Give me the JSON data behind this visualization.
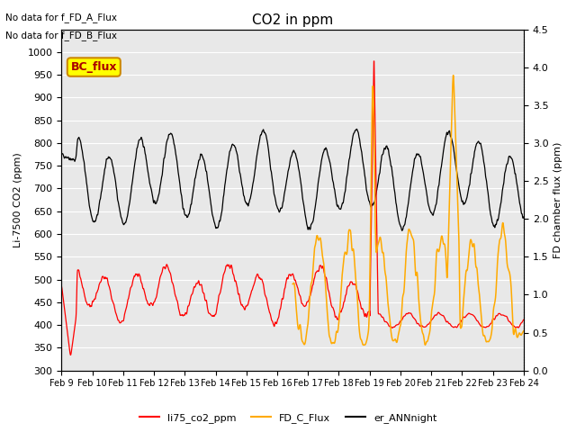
{
  "title": "CO2 in ppm",
  "ylabel_left": "Li-7500 CO2 (ppm)",
  "ylabel_right": "FD chamber flux (ppm)",
  "annotation1": "No data for f_FD_A_Flux",
  "annotation2": "No data for f_FD_B_Flux",
  "bc_flux_label": "BC_flux",
  "xlim_days": [
    0,
    15
  ],
  "ylim_left": [
    300,
    1050
  ],
  "ylim_right": [
    0.0,
    4.5
  ],
  "yticks_left": [
    300,
    350,
    400,
    450,
    500,
    550,
    600,
    650,
    700,
    750,
    800,
    850,
    900,
    950,
    1000
  ],
  "yticks_right": [
    0.0,
    0.5,
    1.0,
    1.5,
    2.0,
    2.5,
    3.0,
    3.5,
    4.0,
    4.5
  ],
  "xtick_labels": [
    "Feb 9",
    "Feb 10",
    "Feb 11",
    "Feb 12",
    "Feb 13",
    "Feb 14",
    "Feb 15",
    "Feb 16",
    "Feb 17",
    "Feb 18",
    "Feb 19",
    "Feb 20",
    "Feb 21",
    "Feb 22",
    "Feb 23",
    "Feb 24"
  ],
  "color_li75": "#ff0000",
  "color_fd": "#ffaa00",
  "color_ann": "#000000",
  "color_bc_box": "#ffff00",
  "color_bc_text": "#aa0000",
  "legend_labels": [
    "li75_co2_ppm",
    "FD_C_Flux",
    "er_ANNnight"
  ],
  "bg_color": "#e8e8e8",
  "grid_color": "#ffffff"
}
